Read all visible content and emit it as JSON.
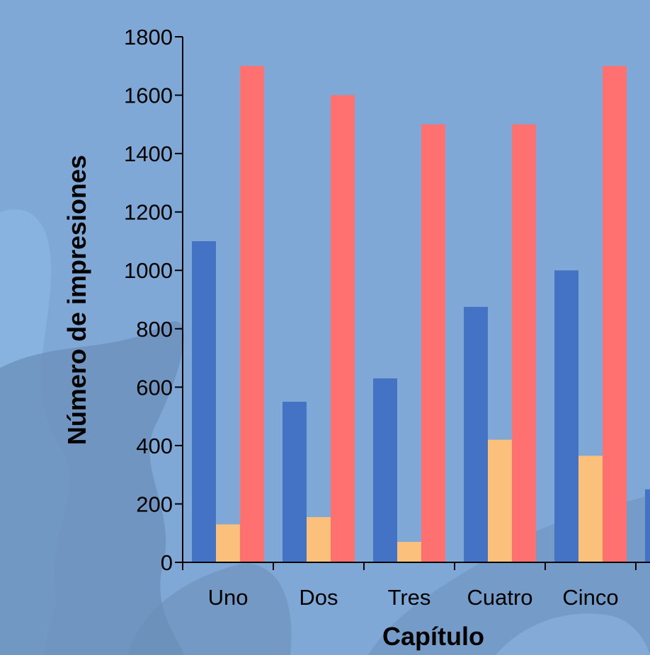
{
  "chart_data": {
    "type": "bar",
    "xlabel": "Capítulo",
    "ylabel": "Número de impresiones",
    "ylim": [
      0,
      1800
    ],
    "yticks": [
      0,
      200,
      400,
      600,
      800,
      1000,
      1200,
      1400,
      1600,
      1800
    ],
    "categories": [
      "Uno",
      "Dos",
      "Tres",
      "Cuatro",
      "Cinco",
      ""
    ],
    "series": [
      {
        "color": "#4472c4",
        "values": [
          1100,
          550,
          630,
          875,
          1000,
          250
        ]
      },
      {
        "color": "#fbc17c",
        "values": [
          130,
          155,
          70,
          420,
          365,
          null
        ]
      },
      {
        "color": "#ff7070",
        "values": [
          1700,
          1600,
          1500,
          1500,
          1700,
          null
        ]
      }
    ],
    "legend": "none",
    "grid": false
  }
}
